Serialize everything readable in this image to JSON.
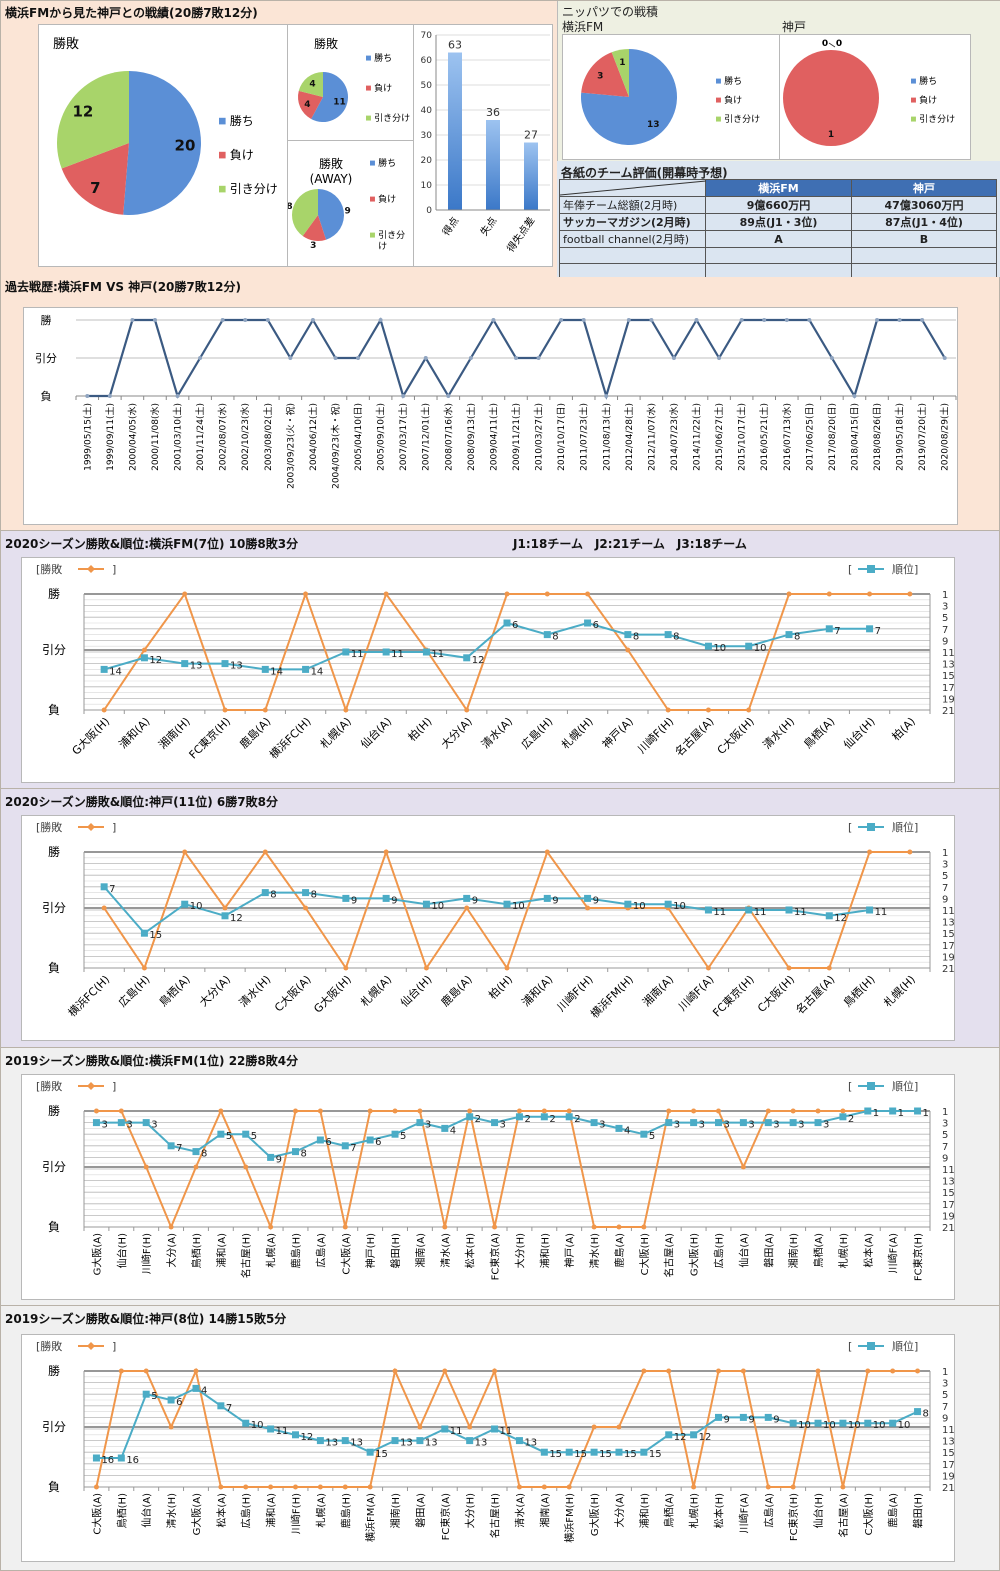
{
  "colors": {
    "win": "#5b8fd6",
    "loss": "#e06060",
    "draw": "#a8d46a",
    "result_line": "#f0964a",
    "rank_line": "#4bacc6",
    "history_line": "#3b5a82",
    "table_header": "#3f6fb3"
  },
  "header": {
    "title": "横浜FMから見た神戸との戦績(20勝7敗12分)",
    "nippatsu_title": "ニッパツでの戦積",
    "nippatsu_fm_label": "横浜FM",
    "nippatsu_kobe_label": "神戸"
  },
  "legend": {
    "win": "勝ち",
    "loss": "負け",
    "draw": "引き分け"
  },
  "ratings": {
    "title": "各紙のチーム評価(開幕時予想)",
    "columns": [
      "",
      "横浜FM",
      "神戸"
    ],
    "rows": [
      [
        "年俸チーム総額(2月時)",
        "9億660万円",
        "47億3060万円"
      ],
      [
        "サッカーマガジン(2月時)",
        "89点(J1・3位)",
        "87点(J1・4位)"
      ],
      [
        "football channel(2月時)",
        "A",
        "B"
      ],
      [
        "",
        "",
        ""
      ],
      [
        "",
        "",
        ""
      ]
    ]
  },
  "chart_data": [
    {
      "id": "overall_pie",
      "type": "pie",
      "title": "勝敗",
      "labels": [
        "勝ち",
        "負け",
        "引き分け"
      ],
      "values": [
        20,
        7,
        12
      ]
    },
    {
      "id": "home_pie",
      "type": "pie",
      "title": "勝敗",
      "labels": [
        "勝ち",
        "負け",
        "引き分け"
      ],
      "values": [
        11,
        4,
        4
      ]
    },
    {
      "id": "away_pie",
      "type": "pie",
      "title": "勝敗\n(AWAY)",
      "title_line1": "勝敗",
      "title_line2": "(AWAY)",
      "labels": [
        "勝ち",
        "負け",
        "引き分け"
      ],
      "legend_draw_line1": "引き分",
      "legend_draw_line2": "け",
      "values": [
        9,
        3,
        8
      ]
    },
    {
      "id": "goals_bar",
      "type": "bar",
      "categories": [
        "得点",
        "失点",
        "得失点差"
      ],
      "values": [
        63,
        36,
        27
      ],
      "ylim": [
        0,
        70
      ],
      "yticks": [
        0,
        10,
        20,
        30,
        40,
        50,
        60,
        70
      ]
    },
    {
      "id": "nippatsu_fm_pie",
      "type": "pie",
      "labels": [
        "勝ち",
        "負け",
        "引き分け"
      ],
      "values": [
        13,
        3,
        1
      ]
    },
    {
      "id": "nippatsu_kobe_pie",
      "type": "pie",
      "labels": [
        "勝ち",
        "負け",
        "引き分け"
      ],
      "values": [
        0,
        1,
        0
      ]
    },
    {
      "id": "history",
      "type": "line",
      "title": "過去戦歴:横浜FM VS 神戸(20勝7敗12分)",
      "ylabels": [
        "勝",
        "引分",
        "負"
      ],
      "x": [
        "1999/05/15(土)",
        "1999/09/11(土)",
        "2000/04/05(水)",
        "2000/11/08(水)",
        "2001/03/10(土)",
        "2001/11/24(土)",
        "2002/08/07(水)",
        "2002/10/23(水)",
        "2003/08/02(土)",
        "2003/09/23(火・祝)",
        "2004/06/12(土)",
        "2004/09/23(木・祝)",
        "2005/04/10(日)",
        "2005/09/10(土)",
        "2007/03/17(土)",
        "2007/12/01(土)",
        "2008/07/16(水)",
        "2008/09/13(土)",
        "2009/04/11(土)",
        "2009/11/21(土)",
        "2010/03/27(土)",
        "2010/10/17(日)",
        "2011/07/23(土)",
        "2011/08/13(土)",
        "2012/04/28(土)",
        "2012/11/07(水)",
        "2014/07/23(水)",
        "2014/11/22(土)",
        "2015/06/27(土)",
        "2015/10/17(土)",
        "2016/05/21(土)",
        "2016/07/13(水)",
        "2017/06/25(日)",
        "2017/08/20(日)",
        "2018/04/15(日)",
        "2018/08/26(日)",
        "2019/05/18(土)",
        "2019/07/20(土)",
        "2020/08/29(土)"
      ],
      "results": [
        "L",
        "L",
        "W",
        "W",
        "L",
        "D",
        "W",
        "W",
        "W",
        "D",
        "W",
        "D",
        "D",
        "W",
        "L",
        "D",
        "L",
        "D",
        "W",
        "D",
        "D",
        "W",
        "W",
        "L",
        "W",
        "W",
        "D",
        "W",
        "D",
        "W",
        "W",
        "W",
        "W",
        "D",
        "L",
        "W",
        "W",
        "W",
        "D"
      ]
    },
    {
      "id": "fm2020",
      "type": "line",
      "title": "2020シーズン勝敗&順位:横浜FM(7位) 10勝8敗3分",
      "note": "J1:18チーム　J2:21チーム　J3:18チーム",
      "legend_result": "[勝敗",
      "legend_rank": "順位]",
      "ylabels": [
        "勝",
        "引分",
        "負"
      ],
      "rank_ticks": [
        1,
        3,
        5,
        7,
        9,
        11,
        13,
        15,
        17,
        19,
        21
      ],
      "x_rotate": "diag",
      "x": [
        "G大阪(H)",
        "浦和(A)",
        "湘南(H)",
        "FC東京(H)",
        "鹿島(A)",
        "横浜FC(H)",
        "札幌(A)",
        "仙台(A)",
        "柏(H)",
        "大分(A)",
        "清水(A)",
        "広島(H)",
        "札幌(H)",
        "神戸(A)",
        "川崎F(H)",
        "名古屋(A)",
        "C大阪(H)",
        "清水(H)",
        "鳥栖(A)",
        "仙台(H)",
        "柏(A)"
      ],
      "results": [
        "L",
        "D",
        "W",
        "L",
        "L",
        "W",
        "L",
        "W",
        "D",
        "L",
        "W",
        "W",
        "W",
        "D",
        "L",
        "L",
        "L",
        "W",
        "W",
        "W",
        "W"
      ],
      "ranks": [
        14,
        12,
        13,
        13,
        14,
        14,
        11,
        11,
        11,
        12,
        6,
        8,
        6,
        8,
        8,
        10,
        10,
        8,
        7,
        7,
        null
      ]
    },
    {
      "id": "kobe2020",
      "type": "line",
      "title": "2020シーズン勝敗&順位:神戸(11位) 6勝7敗8分",
      "legend_result": "[勝敗",
      "legend_rank": "順位]",
      "ylabels": [
        "勝",
        "引分",
        "負"
      ],
      "rank_ticks": [
        1,
        3,
        5,
        7,
        9,
        11,
        13,
        15,
        17,
        19,
        21
      ],
      "x_rotate": "diag",
      "x": [
        "横浜FC(H)",
        "広島(H)",
        "鳥栖(A)",
        "大分(A)",
        "清水(H)",
        "C大阪(A)",
        "G大阪(H)",
        "札幌(A)",
        "仙台(H)",
        "鹿島(A)",
        "柏(H)",
        "浦和(A)",
        "川崎F(H)",
        "横浜FM(H)",
        "湘南(A)",
        "川崎F(A)",
        "FC東京(H)",
        "C大阪(H)",
        "名古屋(A)",
        "鳥栖(H)",
        "札幌(H)"
      ],
      "results": [
        "D",
        "L",
        "W",
        "D",
        "W",
        "D",
        "L",
        "W",
        "L",
        "D",
        "L",
        "W",
        "D",
        "D",
        "D",
        "L",
        "D",
        "L",
        "L",
        "W",
        "W"
      ],
      "ranks": [
        7,
        15,
        10,
        12,
        8,
        8,
        9,
        9,
        10,
        9,
        10,
        9,
        9,
        10,
        10,
        11,
        11,
        11,
        12,
        11,
        null
      ]
    },
    {
      "id": "fm2019",
      "type": "line",
      "title": "2019シーズン勝敗&順位:横浜FM(1位) 22勝8敗4分",
      "legend_result": "[勝敗",
      "legend_rank": "順位]",
      "ylabels": [
        "勝",
        "引分",
        "負"
      ],
      "rank_ticks": [
        1,
        3,
        5,
        7,
        9,
        11,
        13,
        15,
        17,
        19,
        21
      ],
      "x_rotate": "vert",
      "x": [
        "G大阪(A)",
        "仙台(H)",
        "川崎F(H)",
        "大分(A)",
        "鳥栖(H)",
        "浦和(A)",
        "名古屋(H)",
        "札幌(A)",
        "鹿島(H)",
        "広島(A)",
        "C大阪(A)",
        "神戸(H)",
        "磐田(H)",
        "湘南(A)",
        "清水(A)",
        "松本(H)",
        "FC東京(A)",
        "大分(H)",
        "浦和(H)",
        "神戸(A)",
        "清水(H)",
        "鹿島(A)",
        "C大阪(H)",
        "名古屋(A)",
        "G大阪(H)",
        "広島(H)",
        "仙台(A)",
        "磐田(A)",
        "湘南(H)",
        "鳥栖(A)",
        "札幌(H)",
        "松本(A)",
        "川崎F(A)",
        "FC東京(H)"
      ],
      "results": [
        "W",
        "W",
        "D",
        "L",
        "D",
        "W",
        "D",
        "L",
        "W",
        "W",
        "L",
        "W",
        "W",
        "W",
        "L",
        "W",
        "L",
        "W",
        "W",
        "W",
        "L",
        "L",
        "L",
        "W",
        "W",
        "W",
        "D",
        "W",
        "W",
        "W",
        "W",
        "W",
        "W",
        "W"
      ],
      "ranks": [
        3,
        3,
        3,
        7,
        8,
        5,
        5,
        9,
        8,
        6,
        7,
        6,
        5,
        3,
        4,
        2,
        3,
        2,
        2,
        2,
        3,
        4,
        5,
        3,
        3,
        3,
        3,
        3,
        3,
        3,
        2,
        1,
        1,
        1
      ]
    },
    {
      "id": "kobe2019",
      "type": "line",
      "title": "2019シーズン勝敗&順位:神戸(8位) 14勝15敗5分",
      "legend_result": "[勝敗",
      "legend_rank": "順位]",
      "ylabels": [
        "勝",
        "引分",
        "負"
      ],
      "rank_ticks": [
        1,
        3,
        5,
        7,
        9,
        11,
        13,
        15,
        17,
        19,
        21
      ],
      "x_rotate": "vert",
      "x": [
        "C大阪(A)",
        "鳥栖(H)",
        "仙台(A)",
        "清水(H)",
        "G大阪(A)",
        "松本(A)",
        "広島(H)",
        "浦和(A)",
        "川崎F(H)",
        "札幌(A)",
        "鹿島(H)",
        "横浜FM(A)",
        "湘南(H)",
        "磐田(A)",
        "FC東京(A)",
        "大分(H)",
        "名古屋(H)",
        "清水(A)",
        "湘南(A)",
        "横浜FM(H)",
        "G大阪(H)",
        "大分(A)",
        "浦和(H)",
        "鳥栖(A)",
        "札幌(H)",
        "松本(H)",
        "川崎F(A)",
        "広島(A)",
        "FC東京(H)",
        "仙台(H)",
        "名古屋(A)",
        "C大阪(H)",
        "鹿島(A)",
        "磐田(H)"
      ],
      "results": [
        "L",
        "W",
        "W",
        "D",
        "W",
        "L",
        "L",
        "L",
        "L",
        "L",
        "L",
        "L",
        "W",
        "D",
        "W",
        "D",
        "W",
        "L",
        "L",
        "L",
        "D",
        "D",
        "W",
        "W",
        "L",
        "W",
        "W",
        "L",
        "L",
        "W",
        "L",
        "W",
        "W",
        "W"
      ],
      "ranks": [
        16,
        16,
        5,
        6,
        4,
        7,
        10,
        11,
        12,
        13,
        13,
        15,
        13,
        13,
        11,
        13,
        11,
        13,
        15,
        15,
        15,
        15,
        15,
        12,
        12,
        9,
        9,
        9,
        10,
        10,
        10,
        10,
        10,
        8
      ]
    }
  ]
}
